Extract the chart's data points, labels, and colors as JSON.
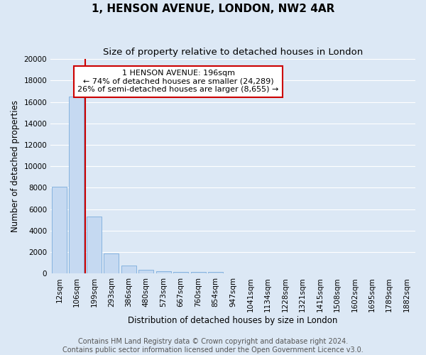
{
  "title": "1, HENSON AVENUE, LONDON, NW2 4AR",
  "subtitle": "Size of property relative to detached houses in London",
  "xlabel": "Distribution of detached houses by size in London",
  "ylabel": "Number of detached properties",
  "categories": [
    "12sqm",
    "106sqm",
    "199sqm",
    "293sqm",
    "386sqm",
    "480sqm",
    "573sqm",
    "667sqm",
    "760sqm",
    "854sqm",
    "947sqm",
    "1041sqm",
    "1134sqm",
    "1228sqm",
    "1321sqm",
    "1415sqm",
    "1508sqm",
    "1602sqm",
    "1695sqm",
    "1789sqm",
    "1882sqm"
  ],
  "bar_heights": [
    8100,
    16500,
    5300,
    1850,
    750,
    320,
    230,
    170,
    170,
    130,
    0,
    0,
    0,
    0,
    0,
    0,
    0,
    0,
    0,
    0,
    0
  ],
  "bar_color": "#c5d9f1",
  "bar_edge_color": "#7aacdc",
  "background_color": "#dce8f5",
  "grid_color": "#ffffff",
  "vline_x": 1.5,
  "vline_color": "#cc0000",
  "annotation_text": "1 HENSON AVENUE: 196sqm\n← 74% of detached houses are smaller (24,289)\n26% of semi-detached houses are larger (8,655) →",
  "annotation_box_color": "#ffffff",
  "annotation_box_edge_color": "#cc0000",
  "ylim": [
    0,
    20000
  ],
  "yticks": [
    0,
    2000,
    4000,
    6000,
    8000,
    10000,
    12000,
    14000,
    16000,
    18000,
    20000
  ],
  "footer": "Contains HM Land Registry data © Crown copyright and database right 2024.\nContains public sector information licensed under the Open Government Licence v3.0.",
  "title_fontsize": 11,
  "subtitle_fontsize": 9.5,
  "axis_label_fontsize": 8.5,
  "tick_fontsize": 7.5,
  "annotation_fontsize": 8,
  "footer_fontsize": 7
}
